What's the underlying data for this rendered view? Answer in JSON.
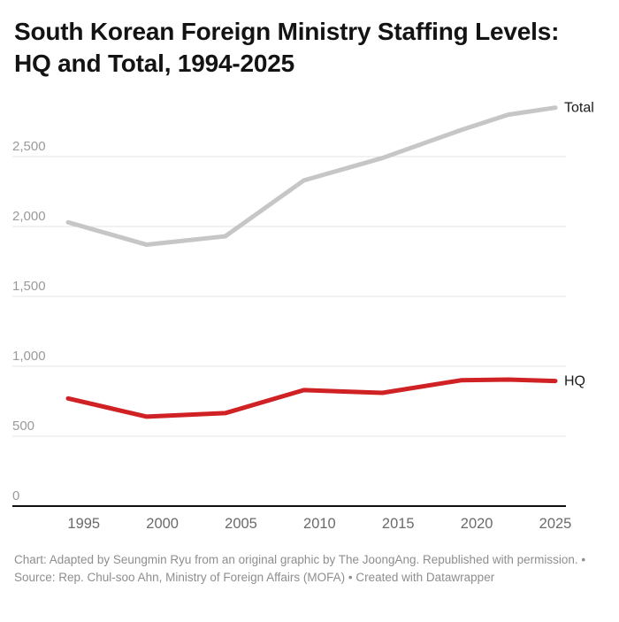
{
  "header": {
    "title": "South Korean Foreign Ministry Staffing Levels: HQ and Total, 1994-2025"
  },
  "footer": {
    "caption": "Chart: Adapted by Seungmin Ryu from an original graphic by The JoongAng. Republished with permission. • Source: Rep. Chul-soo Ahn, Ministry of Foreign Affairs (MOFA) • Created with Datawrapper"
  },
  "chart_data": {
    "type": "line",
    "title": "South Korean Foreign Ministry Staffing Levels: HQ and Total, 1994-2025",
    "xlabel": "",
    "ylabel": "",
    "xlim": [
      1994,
      2025
    ],
    "ylim": [
      0,
      2900
    ],
    "grid": "horizontal",
    "legend": "line-end-labels",
    "x": [
      1994,
      1999,
      2004,
      2009,
      2014,
      2019,
      2022,
      2025
    ],
    "series": [
      {
        "name": "Total",
        "color": "#c6c6c6",
        "values": [
          2030,
          1870,
          1930,
          2330,
          2490,
          2690,
          2800,
          2850
        ]
      },
      {
        "name": "HQ",
        "color": "#d02224",
        "values": [
          770,
          640,
          665,
          830,
          810,
          900,
          905,
          895
        ]
      }
    ],
    "y_ticks": [
      {
        "value": 0,
        "label": "0"
      },
      {
        "value": 500,
        "label": "500"
      },
      {
        "value": 1000,
        "label": "1,000"
      },
      {
        "value": 1500,
        "label": "1,500"
      },
      {
        "value": 2000,
        "label": "2,000"
      },
      {
        "value": 2500,
        "label": "2,500"
      }
    ],
    "x_ticks": [
      {
        "value": 1995,
        "label": "1995"
      },
      {
        "value": 2000,
        "label": "2000"
      },
      {
        "value": 2005,
        "label": "2005"
      },
      {
        "value": 2010,
        "label": "2010"
      },
      {
        "value": 2015,
        "label": "2015"
      },
      {
        "value": 2020,
        "label": "2020"
      },
      {
        "value": 2025,
        "label": "2025"
      }
    ],
    "axis_color": "#101010",
    "gridline_color": "#e4e4e4",
    "y_tick_label_color": "#9a9a9a",
    "x_tick_label_color": "#6b6b6b",
    "series_label_color": "#1a1a1a"
  }
}
